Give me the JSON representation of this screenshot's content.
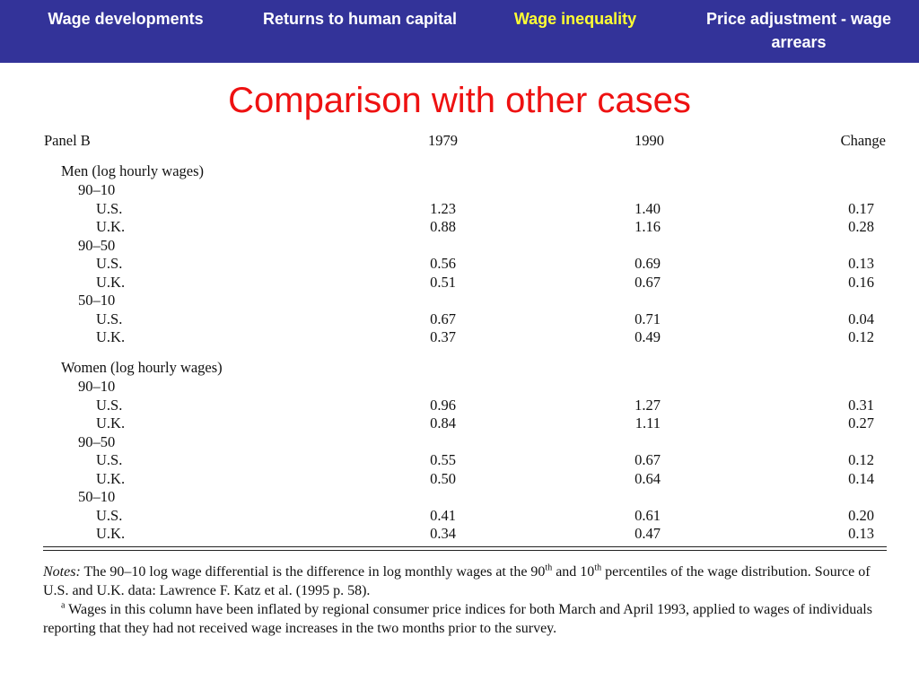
{
  "nav": {
    "items": [
      {
        "label": "Wage developments",
        "active": false
      },
      {
        "label": "Returns to human capital",
        "active": false
      },
      {
        "label": "Wage inequality",
        "active": true
      },
      {
        "label": "Price adjustment - wage arrears",
        "active": false
      }
    ],
    "active_color": "#ffff33",
    "background": "#333399"
  },
  "title": "Comparison with other cases",
  "table": {
    "panel": "Panel B",
    "col1": "1979",
    "col2": "1990",
    "col3": "Change",
    "men_heading": "Men (log hourly wages)",
    "women_heading": "Women (log hourly wages)",
    "men": [
      {
        "group": "90–10",
        "rows": [
          {
            "country": "U.S.",
            "v1979": "1.23",
            "v1990": "1.40",
            "change": "0.17"
          },
          {
            "country": "U.K.",
            "v1979": "0.88",
            "v1990": "1.16",
            "change": "0.28"
          }
        ]
      },
      {
        "group": "90–50",
        "rows": [
          {
            "country": "U.S.",
            "v1979": "0.56",
            "v1990": "0.69",
            "change": "0.13"
          },
          {
            "country": "U.K.",
            "v1979": "0.51",
            "v1990": "0.67",
            "change": "0.16"
          }
        ]
      },
      {
        "group": "50–10",
        "rows": [
          {
            "country": "U.S.",
            "v1979": "0.67",
            "v1990": "0.71",
            "change": "0.04"
          },
          {
            "country": "U.K.",
            "v1979": "0.37",
            "v1990": "0.49",
            "change": "0.12"
          }
        ]
      }
    ],
    "women": [
      {
        "group": "90–10",
        "rows": [
          {
            "country": "U.S.",
            "v1979": "0.96",
            "v1990": "1.27",
            "change": "0.31"
          },
          {
            "country": "U.K.",
            "v1979": "0.84",
            "v1990": "1.11",
            "change": "0.27"
          }
        ]
      },
      {
        "group": "90–50",
        "rows": [
          {
            "country": "U.S.",
            "v1979": "0.55",
            "v1990": "0.67",
            "change": "0.12"
          },
          {
            "country": "U.K.",
            "v1979": "0.50",
            "v1990": "0.64",
            "change": "0.14"
          }
        ]
      },
      {
        "group": "50–10",
        "rows": [
          {
            "country": "U.S.",
            "v1979": "0.41",
            "v1990": "0.61",
            "change": "0.20"
          },
          {
            "country": "U.K.",
            "v1979": "0.34",
            "v1990": "0.47",
            "change": "0.13"
          }
        ]
      }
    ]
  },
  "notes": {
    "label": "Notes:",
    "line1_a": " The 90–10 log wage differential is the difference in log monthly wages at the 90",
    "sup1": "th",
    "line1_b": " and 10",
    "sup2": "th",
    "line1_c": " percentiles of the wage distribution. Source of U.S. and U.K. data: Lawrence F. Katz et al. (1995 p. 58).",
    "footnote_marker": "a",
    "footnote": " Wages in this column have been inflated by regional consumer price indices for both March and April 1993, applied to wages of individuals reporting that they had not received wage increases in the two months prior to the survey."
  }
}
